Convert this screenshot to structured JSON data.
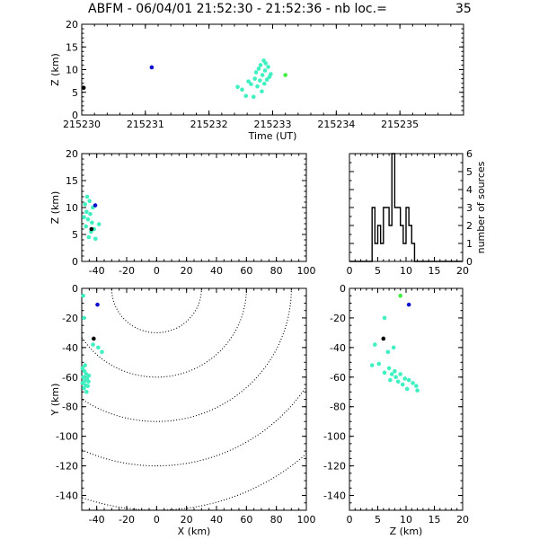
{
  "header": {
    "title": "ABFM - 06/04/01 21:52:30 - 21:52:36 - nb loc.=",
    "count": "35"
  },
  "colors": {
    "main": "#40f0c0",
    "black": "#000000",
    "blue": "#1010d0",
    "green": "#40f040"
  },
  "chart_data": [
    {
      "type": "scatter",
      "name": "time-height",
      "xlabel": "Time (UT)",
      "ylabel": "Z (km)",
      "xlim": [
        215230,
        215236
      ],
      "ylim": [
        0,
        20
      ],
      "xticks": [
        "215230",
        "215231",
        "215232",
        "215233",
        "215234",
        "215235"
      ],
      "yticks": [
        "0",
        "5",
        "10",
        "15",
        "20"
      ],
      "points": [
        {
          "x": 215230.03,
          "y": 6.0,
          "c": "black"
        },
        {
          "x": 215231.1,
          "y": 10.5,
          "c": "blue"
        },
        {
          "x": 215233.2,
          "y": 8.8,
          "c": "green"
        },
        {
          "x": 215232.45,
          "y": 6.2,
          "c": "main"
        },
        {
          "x": 215232.52,
          "y": 5.6,
          "c": "main"
        },
        {
          "x": 215232.58,
          "y": 4.2,
          "c": "main"
        },
        {
          "x": 215232.62,
          "y": 7.4,
          "c": "main"
        },
        {
          "x": 215232.66,
          "y": 6.8,
          "c": "main"
        },
        {
          "x": 215232.7,
          "y": 4.0,
          "c": "main"
        },
        {
          "x": 215232.72,
          "y": 8.0,
          "c": "main"
        },
        {
          "x": 215232.74,
          "y": 9.4,
          "c": "main"
        },
        {
          "x": 215232.76,
          "y": 6.3,
          "c": "main"
        },
        {
          "x": 215232.78,
          "y": 10.2,
          "c": "main"
        },
        {
          "x": 215232.8,
          "y": 7.6,
          "c": "main"
        },
        {
          "x": 215232.81,
          "y": 11.0,
          "c": "main"
        },
        {
          "x": 215232.83,
          "y": 5.2,
          "c": "main"
        },
        {
          "x": 215232.84,
          "y": 8.8,
          "c": "main"
        },
        {
          "x": 215232.86,
          "y": 12.0,
          "c": "main"
        },
        {
          "x": 215232.87,
          "y": 6.9,
          "c": "main"
        },
        {
          "x": 215232.88,
          "y": 9.8,
          "c": "main"
        },
        {
          "x": 215232.89,
          "y": 11.4,
          "c": "main"
        },
        {
          "x": 215232.91,
          "y": 7.8,
          "c": "main"
        },
        {
          "x": 215232.93,
          "y": 10.6,
          "c": "main"
        },
        {
          "x": 215232.95,
          "y": 8.4,
          "c": "main"
        },
        {
          "x": 215232.97,
          "y": 9.0,
          "c": "main"
        }
      ]
    },
    {
      "type": "scatter",
      "name": "x-height",
      "xlabel": "",
      "ylabel": "Z (km)",
      "xlim": [
        -50,
        100
      ],
      "ylim": [
        0,
        20
      ],
      "xticks": [
        "-40",
        "-20",
        "0",
        "20",
        "40",
        "60",
        "80",
        "100"
      ],
      "yticks": [
        "0",
        "5",
        "10",
        "15",
        "20"
      ],
      "points": [
        {
          "x": -48.5,
          "y": 8.2,
          "c": "main"
        },
        {
          "x": -47.8,
          "y": 10.6,
          "c": "main"
        },
        {
          "x": -47.2,
          "y": 6.5,
          "c": "main"
        },
        {
          "x": -46.8,
          "y": 9.2,
          "c": "main"
        },
        {
          "x": -46.4,
          "y": 12.0,
          "c": "main"
        },
        {
          "x": -45.8,
          "y": 7.8,
          "c": "main"
        },
        {
          "x": -45.3,
          "y": 4.5,
          "c": "main"
        },
        {
          "x": -44.8,
          "y": 11.2,
          "c": "main"
        },
        {
          "x": -44.3,
          "y": 8.8,
          "c": "main"
        },
        {
          "x": -43.8,
          "y": 5.5,
          "c": "main"
        },
        {
          "x": -43.2,
          "y": 7.2,
          "c": "main"
        },
        {
          "x": -42.6,
          "y": 10.0,
          "c": "main"
        },
        {
          "x": -41.8,
          "y": 6.0,
          "c": "main"
        },
        {
          "x": -40.8,
          "y": 4.2,
          "c": "main"
        },
        {
          "x": -38.5,
          "y": 6.9,
          "c": "main"
        },
        {
          "x": -43.5,
          "y": 6.0,
          "c": "black"
        },
        {
          "x": -41.0,
          "y": 10.4,
          "c": "blue"
        }
      ]
    },
    {
      "type": "bar",
      "name": "height-histogram",
      "xlabel": "",
      "ylabel": "number of sources",
      "xlim": [
        0,
        20
      ],
      "ylim": [
        0,
        6
      ],
      "xticks": [
        "0",
        "5",
        "10",
        "15",
        "20"
      ],
      "yticks": [
        "0",
        "1",
        "2",
        "3",
        "4",
        "5",
        "6"
      ],
      "bin_width": 0.5,
      "bins_start": 4.0,
      "values": [
        3,
        1,
        2,
        1,
        3,
        3,
        2,
        6,
        3,
        3,
        2,
        1,
        3,
        2,
        1
      ]
    },
    {
      "type": "scatter",
      "name": "plan-view",
      "xlabel": "X (km)",
      "ylabel": "Y (km)",
      "xlim": [
        -50,
        100
      ],
      "ylim": [
        -150,
        0
      ],
      "xticks": [
        "-40",
        "-20",
        "0",
        "20",
        "40",
        "60",
        "80",
        "100"
      ],
      "yticks": [
        "0",
        "-20",
        "-40",
        "-60",
        "-80",
        "-100",
        "-120",
        "-140"
      ],
      "range_rings_km": [
        30,
        60,
        90,
        120,
        150
      ],
      "points": [
        {
          "x": -49.0,
          "y": -5.0,
          "c": "main"
        },
        {
          "x": -48.5,
          "y": -20.0,
          "c": "main"
        },
        {
          "x": -42.5,
          "y": -38.0,
          "c": "main"
        },
        {
          "x": -39.0,
          "y": -40.0,
          "c": "main"
        },
        {
          "x": -36.5,
          "y": -43.0,
          "c": "main"
        },
        {
          "x": -49.5,
          "y": -54.0,
          "c": "main"
        },
        {
          "x": -48.2,
          "y": -56.0,
          "c": "main"
        },
        {
          "x": -47.0,
          "y": -58.0,
          "c": "main"
        },
        {
          "x": -49.0,
          "y": -60.0,
          "c": "main"
        },
        {
          "x": -46.5,
          "y": -61.0,
          "c": "main"
        },
        {
          "x": -48.0,
          "y": -62.5,
          "c": "main"
        },
        {
          "x": -45.5,
          "y": -63.0,
          "c": "main"
        },
        {
          "x": -49.5,
          "y": -64.0,
          "c": "main"
        },
        {
          "x": -47.5,
          "y": -65.5,
          "c": "main"
        },
        {
          "x": -46.0,
          "y": -66.0,
          "c": "main"
        },
        {
          "x": -48.5,
          "y": -67.5,
          "c": "main"
        },
        {
          "x": -46.8,
          "y": -70.0,
          "c": "main"
        },
        {
          "x": -45.2,
          "y": -59.0,
          "c": "main"
        },
        {
          "x": -47.8,
          "y": -52.0,
          "c": "main"
        },
        {
          "x": -42.0,
          "y": -34.0,
          "c": "black"
        },
        {
          "x": -39.5,
          "y": -11.0,
          "c": "blue"
        }
      ]
    },
    {
      "type": "scatter",
      "name": "height-y",
      "xlabel": "Z (km)",
      "ylabel": "",
      "xlim": [
        0,
        20
      ],
      "ylim": [
        -150,
        0
      ],
      "xticks": [
        "0",
        "5",
        "10",
        "15",
        "20"
      ],
      "yticks": [
        "0",
        "-20",
        "-40",
        "-60",
        "-80",
        "-100",
        "-120",
        "-140"
      ],
      "points": [
        {
          "x": 9.0,
          "y": -5.0,
          "c": "green"
        },
        {
          "x": 10.5,
          "y": -11.0,
          "c": "blue"
        },
        {
          "x": 6.0,
          "y": -34.0,
          "c": "black"
        },
        {
          "x": 6.2,
          "y": -20.0,
          "c": "main"
        },
        {
          "x": 4.5,
          "y": -38.0,
          "c": "main"
        },
        {
          "x": 7.8,
          "y": -40.0,
          "c": "main"
        },
        {
          "x": 6.8,
          "y": -43.0,
          "c": "main"
        },
        {
          "x": 4.0,
          "y": -52.0,
          "c": "main"
        },
        {
          "x": 5.2,
          "y": -51.0,
          "c": "main"
        },
        {
          "x": 7.0,
          "y": -54.0,
          "c": "main"
        },
        {
          "x": 6.2,
          "y": -57.0,
          "c": "main"
        },
        {
          "x": 7.5,
          "y": -58.0,
          "c": "main"
        },
        {
          "x": 8.2,
          "y": -60.0,
          "c": "main"
        },
        {
          "x": 9.0,
          "y": -58.0,
          "c": "main"
        },
        {
          "x": 7.2,
          "y": -62.0,
          "c": "main"
        },
        {
          "x": 9.8,
          "y": -61.0,
          "c": "main"
        },
        {
          "x": 8.6,
          "y": -63.0,
          "c": "main"
        },
        {
          "x": 10.5,
          "y": -62.0,
          "c": "main"
        },
        {
          "x": 11.2,
          "y": -64.0,
          "c": "main"
        },
        {
          "x": 9.4,
          "y": -65.0,
          "c": "main"
        },
        {
          "x": 11.8,
          "y": -66.0,
          "c": "main"
        },
        {
          "x": 10.2,
          "y": -68.0,
          "c": "main"
        },
        {
          "x": 12.0,
          "y": -69.0,
          "c": "main"
        },
        {
          "x": 8.0,
          "y": -56.0,
          "c": "main"
        }
      ]
    }
  ]
}
